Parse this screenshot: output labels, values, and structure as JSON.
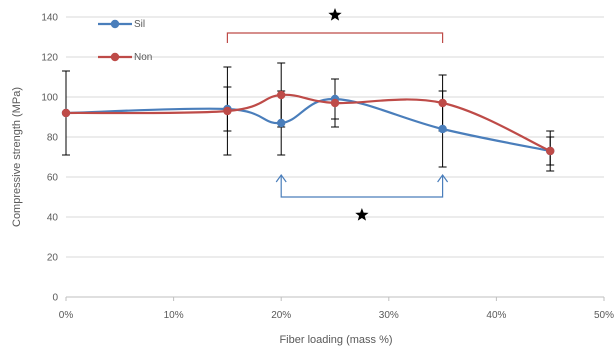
{
  "chart_data": {
    "type": "line",
    "title": "",
    "xlabel": "Fiber loading (mass %)",
    "ylabel": "Compressive strength (MPa)",
    "xlim": [
      0,
      50
    ],
    "ylim": [
      0,
      140
    ],
    "x_ticks": [
      0,
      10,
      20,
      30,
      40,
      50
    ],
    "x_tick_labels": [
      "0%",
      "10%",
      "20%",
      "30%",
      "40%",
      "50%"
    ],
    "y_ticks": [
      0,
      20,
      40,
      60,
      80,
      100,
      120,
      140
    ],
    "y_tick_labels": [
      "0",
      "20",
      "40",
      "60",
      "80",
      "100",
      "120",
      "140"
    ],
    "grid": "horizontal",
    "legend_position": "top-left",
    "series": [
      {
        "name": "Sil",
        "color": "#4A7EBB",
        "x": [
          0,
          15,
          20,
          25,
          35,
          45
        ],
        "y": [
          92,
          94,
          87,
          99,
          84,
          73
        ],
        "error": [
          21,
          11,
          16,
          10,
          19,
          7
        ]
      },
      {
        "name": "Non",
        "color": "#BE4B48",
        "x": [
          0,
          15,
          20,
          25,
          35,
          45
        ],
        "y": [
          92,
          93,
          101,
          97,
          97,
          73
        ],
        "error": [
          21,
          22,
          16,
          12,
          14,
          10
        ]
      }
    ],
    "annotations": [
      {
        "type": "bracket",
        "direction": "down",
        "from": 15,
        "to": 35,
        "level": 132,
        "color": "#BE4B48",
        "symbol": "star",
        "symbol_y": 141
      },
      {
        "type": "bracket",
        "direction": "up",
        "from": 20,
        "to": 35,
        "level": 50,
        "color": "#4A7EBB",
        "symbol": "star",
        "symbol_x": 27.5,
        "symbol_y": 41
      }
    ]
  }
}
